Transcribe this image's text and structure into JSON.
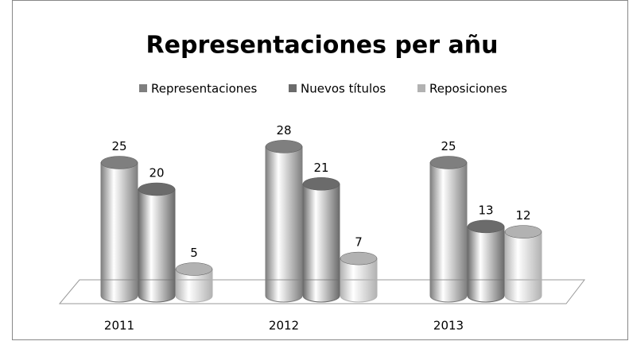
{
  "chart_data": {
    "type": "bar3d",
    "title": "Representaciones per añu",
    "categories": [
      "2011",
      "2012",
      "2013"
    ],
    "series": [
      {
        "name": "Representaciones",
        "color": "#7f7f7f",
        "values": [
          25,
          28,
          25
        ]
      },
      {
        "name": "Nuevos títulos",
        "color": "#6b6b6b",
        "values": [
          20,
          21,
          13
        ]
      },
      {
        "name": "Reposiciones",
        "color": "#b2b2b2",
        "values": [
          5,
          7,
          12
        ]
      }
    ],
    "legend": "top"
  }
}
